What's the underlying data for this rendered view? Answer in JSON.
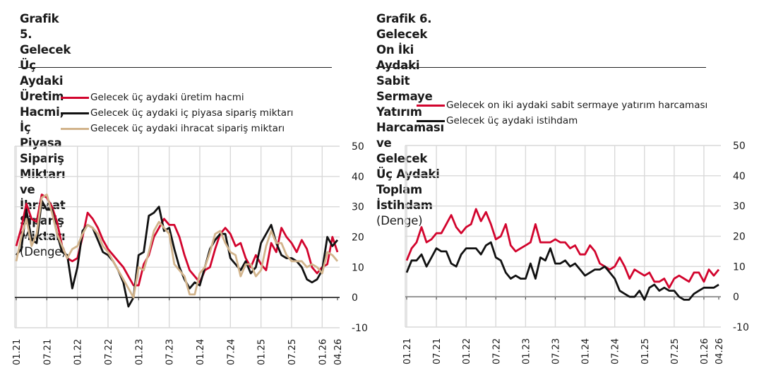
{
  "chart_data": [
    {
      "type": "line",
      "title": "Grafik 5. Gelecek Üç Aydaki Üretim Hacmi, İç Piyasa Sipariş Miktarı ve İhracat Sipariş Miktarı",
      "title_lines": [
        "Grafik 5. Gelecek Üç Aydaki Üretim Hacmi,",
        "İç Piyasa Sipariş Miktarı ve İhracat Sipariş",
        "Miktarı"
      ],
      "subtitle": "(Denge)",
      "xlabel": "",
      "ylabel": "",
      "ylim": [
        -10,
        50
      ],
      "yticks": [
        50,
        40,
        30,
        20,
        10,
        0,
        -10
      ],
      "y_axis_position": "right",
      "grid": true,
      "legend_position": "top",
      "x_tick_labels": [
        "01.21",
        "07.21",
        "01.22",
        "07.22",
        "01.23",
        "07.23",
        "01.24",
        "07.24",
        "01.25",
        "07.25",
        "01.26",
        "04.26"
      ],
      "x_tick_month_index": [
        0,
        6,
        12,
        18,
        24,
        30,
        36,
        42,
        48,
        54,
        60,
        63
      ],
      "x_start": "01.21",
      "x_end": "04.26",
      "series": [
        {
          "name": "Gelecek üç aydaki üretim hacmi",
          "color": "#d2042d",
          "values": [
            17,
            23,
            31,
            26,
            25,
            34,
            33,
            30,
            25,
            17,
            13,
            12,
            13,
            20,
            28,
            26,
            23,
            19,
            16,
            14,
            12,
            10,
            7,
            4,
            4,
            11,
            14,
            20,
            23,
            26,
            24,
            24,
            20,
            14,
            9,
            7,
            5,
            9,
            10,
            16,
            21,
            23,
            21,
            17,
            18,
            13,
            10,
            14,
            11,
            9,
            18,
            15,
            23,
            20,
            18,
            15,
            19,
            16,
            10,
            8,
            10,
            11,
            20,
            15
          ]
        },
        {
          "name": "Gelecek üç aydaki iç piyasa sipariş miktarı",
          "color": "#111111",
          "values": [
            14,
            16,
            29,
            19,
            18,
            32,
            29,
            29,
            21,
            15,
            14,
            3,
            10,
            22,
            24,
            23,
            19,
            15,
            14,
            12,
            9,
            5,
            -3,
            0,
            14,
            15,
            27,
            28,
            30,
            22,
            23,
            16,
            10,
            6,
            3,
            5,
            4,
            10,
            16,
            19,
            21,
            21,
            13,
            11,
            9,
            12,
            8,
            10,
            18,
            21,
            24,
            18,
            14,
            13,
            13,
            12,
            10,
            6,
            5,
            6,
            9,
            20,
            17,
            19
          ]
        },
        {
          "name": "Gelecek üç aydaki ihracat sipariş miktarı",
          "color": "#d2b48c",
          "values": [
            12,
            20,
            26,
            17,
            21,
            33,
            34,
            28,
            21,
            17,
            13,
            16,
            17,
            21,
            24,
            23,
            21,
            17,
            15,
            12,
            9,
            6,
            3,
            0,
            10,
            9,
            15,
            22,
            25,
            23,
            21,
            11,
            9,
            7,
            1,
            1,
            8,
            10,
            15,
            21,
            22,
            18,
            15,
            14,
            7,
            11,
            11,
            7,
            9,
            17,
            22,
            18,
            18,
            14,
            12,
            12,
            12,
            10,
            11,
            10,
            8,
            15,
            14,
            12
          ]
        }
      ]
    },
    {
      "type": "line",
      "title": "Grafik 6. Gelecek On İki Aydaki Sabit Sermaye Yatırım Harcaması ve Gelecek Üç Aydaki Toplam İstihdam",
      "title_lines": [
        "Grafik 6. Gelecek On İki Aydaki Sabit Sermaye",
        "Yatırım Harcaması ve Gelecek Üç Aydaki Toplam",
        "İstihdam"
      ],
      "subtitle": "(Denge)",
      "xlabel": "",
      "ylabel": "",
      "ylim": [
        -10,
        50
      ],
      "yticks": [
        50,
        40,
        30,
        20,
        10,
        0,
        -10
      ],
      "y_axis_position": "right",
      "grid": true,
      "legend_position": "top",
      "x_tick_labels": [
        "01.21",
        "07.21",
        "01.22",
        "07.22",
        "01.23",
        "07.23",
        "01.24",
        "07.24",
        "01.25",
        "07.25",
        "01.26",
        "04.26"
      ],
      "x_tick_month_index": [
        0,
        6,
        12,
        18,
        24,
        30,
        36,
        42,
        48,
        54,
        60,
        63
      ],
      "x_start": "01.21",
      "x_end": "04.26",
      "series": [
        {
          "name": "Gelecek on iki aydaki sabit sermaye yatırım harcaması",
          "color": "#d2042d",
          "values": [
            12,
            16,
            18,
            23,
            18,
            19,
            21,
            21,
            24,
            27,
            23,
            21,
            23,
            24,
            29,
            25,
            28,
            24,
            19,
            20,
            24,
            17,
            15,
            16,
            17,
            18,
            24,
            18,
            18,
            18,
            19,
            18,
            18,
            16,
            17,
            14,
            14,
            17,
            15,
            11,
            10,
            9,
            10,
            13,
            10,
            6,
            9,
            8,
            7,
            8,
            5,
            5,
            6,
            3,
            6,
            7,
            6,
            5,
            8,
            8,
            5,
            9,
            7,
            9
          ]
        },
        {
          "name": "Gelecek üç aydaki istihdam",
          "color": "#111111",
          "values": [
            8,
            12,
            12,
            14,
            10,
            13,
            16,
            15,
            15,
            11,
            10,
            14,
            16,
            16,
            16,
            14,
            17,
            18,
            13,
            12,
            8,
            6,
            7,
            6,
            6,
            11,
            6,
            13,
            12,
            16,
            11,
            11,
            12,
            10,
            11,
            9,
            7,
            8,
            9,
            9,
            10,
            8,
            6,
            2,
            1,
            0,
            0,
            2,
            -1,
            3,
            4,
            2,
            3,
            2,
            2,
            0,
            -1,
            -1,
            1,
            2,
            3,
            3,
            3,
            4
          ]
        }
      ]
    }
  ],
  "panels": [
    {
      "title_lines": [
        "Grafik 5. Gelecek Üç Aydaki Üretim Hacmi,",
        "İç Piyasa Sipariş Miktarı ve İhracat Sipariş",
        "Miktarı"
      ],
      "subtitle": "(Denge)",
      "legend": [
        {
          "label": "Gelecek üç aydaki üretim hacmi",
          "color": "#d2042d"
        },
        {
          "label": "Gelecek üç aydaki iç piyasa sipariş miktarı",
          "color": "#111111"
        },
        {
          "label": "Gelecek üç aydaki ihracat sipariş miktarı",
          "color": "#d2b48c"
        }
      ]
    },
    {
      "title_lines": [
        "Grafik 6. Gelecek On İki Aydaki Sabit Sermaye",
        "Yatırım Harcaması ve Gelecek Üç Aydaki Toplam",
        "İstihdam"
      ],
      "subtitle": "(Denge)",
      "legend": [
        {
          "label": "Gelecek on iki aydaki sabit sermaye yatırım harcaması",
          "color": "#d2042d"
        },
        {
          "label": "Gelecek üç aydaki istihdam",
          "color": "#111111"
        }
      ]
    }
  ],
  "colors": {
    "grid": "#d9d9d9",
    "zero_line": "#1a1a1a",
    "zero_line_chart6": "#808080",
    "title_rule": "#222222"
  }
}
